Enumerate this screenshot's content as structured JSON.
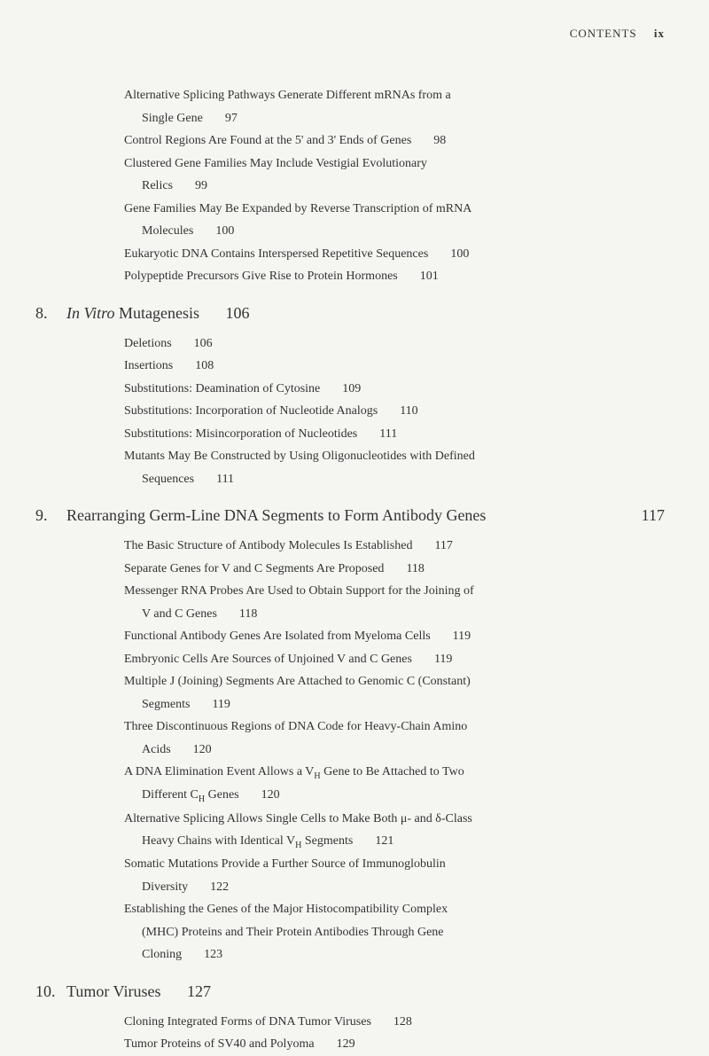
{
  "header": {
    "label": "CONTENTS",
    "pagenum": "ix"
  },
  "sections": {
    "top": [
      {
        "text": "Alternative Splicing Pathways Generate Different mRNAs from a",
        "cont": false
      },
      {
        "text": "Single Gene",
        "page": "97",
        "cont": true
      },
      {
        "text": "Control Regions Are Found at the 5' and 3' Ends of Genes",
        "page": "98",
        "cont": false
      },
      {
        "text": "Clustered Gene Families May Include Vestigial Evolutionary",
        "cont": false
      },
      {
        "text": "Relics",
        "page": "99",
        "cont": true
      },
      {
        "text": "Gene Families May Be Expanded by Reverse Transcription of mRNA",
        "cont": false
      },
      {
        "text": "Molecules",
        "page": "100",
        "cont": true
      },
      {
        "text": "Eukaryotic DNA Contains Interspersed Repetitive Sequences",
        "page": "100",
        "cont": false
      },
      {
        "text": "Polypeptide Precursors Give Rise to Protein Hormones",
        "page": "101",
        "cont": false
      }
    ],
    "s8": {
      "num": "8.",
      "titlePrefix": "In Vitro",
      "titleRest": " Mutagenesis",
      "page": "106",
      "entries": [
        {
          "text": "Deletions",
          "page": "106",
          "cont": false
        },
        {
          "text": "Insertions",
          "page": "108",
          "cont": false
        },
        {
          "text": "Substitutions: Deamination of Cytosine",
          "page": "109",
          "cont": false
        },
        {
          "text": "Substitutions: Incorporation of Nucleotide Analogs",
          "page": "110",
          "cont": false
        },
        {
          "text": "Substitutions: Misincorporation of Nucleotides",
          "page": "111",
          "cont": false
        },
        {
          "text": "Mutants May Be Constructed by Using Oligonucleotides with Defined",
          "cont": false
        },
        {
          "text": "Sequences",
          "page": "111",
          "cont": true
        }
      ]
    },
    "s9": {
      "num": "9.",
      "title": "Rearranging Germ-Line DNA Segments to Form Antibody Genes",
      "page": "117",
      "entries": [
        {
          "text": "The Basic Structure of Antibody Molecules Is Established",
          "page": "117",
          "cont": false
        },
        {
          "text": "Separate Genes for V and C Segments Are Proposed",
          "page": "118",
          "cont": false
        },
        {
          "text": "Messenger RNA Probes Are Used to Obtain Support for the Joining of",
          "cont": false
        },
        {
          "text": "V and C Genes",
          "page": "118",
          "cont": true
        },
        {
          "text": "Functional Antibody Genes Are Isolated from Myeloma Cells",
          "page": "119",
          "cont": false
        },
        {
          "text": "Embryonic Cells Are Sources of Unjoined V and C Genes",
          "page": "119",
          "cont": false
        },
        {
          "text": "Multiple J (Joining) Segments Are Attached to Genomic C (Constant)",
          "cont": false
        },
        {
          "text": "Segments",
          "page": "119",
          "cont": true
        },
        {
          "text": "Three Discontinuous Regions of DNA Code for Heavy-Chain Amino",
          "cont": false
        },
        {
          "text": "Acids",
          "page": "120",
          "cont": true
        },
        {
          "text": "A DNA Elimination Event Allows a V",
          "sub": "H",
          "textAfter": " Gene to Be Attached to Two",
          "cont": false
        },
        {
          "text": "Different C",
          "sub": "H",
          "textAfter": " Genes",
          "page": "120",
          "cont": true
        },
        {
          "text": "Alternative Splicing Allows Single Cells to Make Both μ- and δ-Class",
          "cont": false
        },
        {
          "text": "Heavy Chains with Identical V",
          "sub": "H",
          "textAfter": " Segments",
          "page": "121",
          "cont": true
        },
        {
          "text": "Somatic Mutations Provide a Further Source of Immunoglobulin",
          "cont": false
        },
        {
          "text": "Diversity",
          "page": "122",
          "cont": true
        },
        {
          "text": "Establishing the Genes of the Major Histocompatibility Complex",
          "cont": false
        },
        {
          "text": "(MHC) Proteins and Their Protein Antibodies Through Gene",
          "cont": true
        },
        {
          "text": "Cloning",
          "page": "123",
          "cont": true
        }
      ]
    },
    "s10": {
      "num": "10.",
      "title": "Tumor Viruses",
      "page": "127",
      "entries": [
        {
          "text": "Cloning Integrated Forms of DNA Tumor Viruses",
          "page": "128",
          "cont": false
        },
        {
          "text": "Tumor Proteins of SV40 and Polyoma",
          "page": "129",
          "cont": false
        }
      ]
    }
  }
}
